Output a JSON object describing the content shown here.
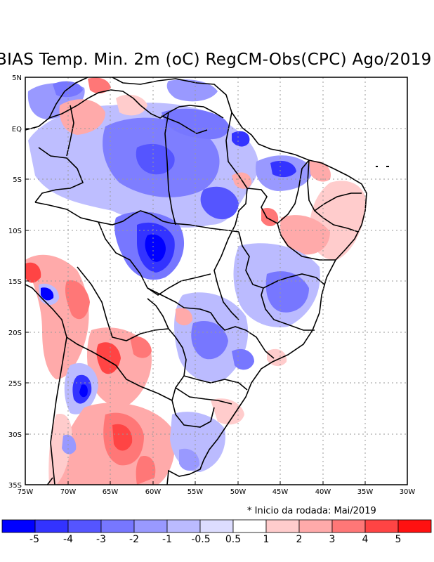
{
  "title": "BIAS Temp. Min. 2m (oC) RegCM-Obs(CPC) Ago/2019",
  "footnote": "* Inicio da rodada: Mai/2019",
  "lat_labels": [
    "5N",
    "EQ",
    "5S",
    "10S",
    "15S",
    "20S",
    "25S",
    "30S",
    "35S"
  ],
  "lon_labels": [
    "75W",
    "70W",
    "65W",
    "60W",
    "55W",
    "50W",
    "45W",
    "40W",
    "35W",
    "30W"
  ],
  "colorbar": {
    "labels": [
      "-5",
      "-4",
      "-3",
      "-2",
      "-1",
      "-0.5",
      "0.5",
      "1",
      "2",
      "3",
      "4",
      "5"
    ],
    "colors": [
      "#0000ff",
      "#3333ff",
      "#5555ff",
      "#7777ff",
      "#9999ff",
      "#bbbbff",
      "#ddddff",
      "#ffffff",
      "#ffcccc",
      "#ffaaaa",
      "#ff7777",
      "#ff4444",
      "#ff1111"
    ]
  },
  "map_data": {
    "type": "raster",
    "variable": "BIAS Temp. Min. 2m",
    "units": "oC",
    "lon_range": [
      -75,
      -30
    ],
    "lat_range": [
      -35,
      5
    ],
    "features": [
      {
        "name": "cold-amazon",
        "bias": -2
      },
      {
        "name": "cold-rondonia-mato-grosso",
        "bias": -4
      },
      {
        "name": "cold-northeast-maranhao",
        "bias": -3
      },
      {
        "name": "cold-bolivia-andes",
        "bias": -5
      },
      {
        "name": "cold-northwest-argentina",
        "bias": -5
      },
      {
        "name": "warm-andes-peru-chile",
        "bias": 4
      },
      {
        "name": "warm-paraguay-chaco",
        "bias": 4
      },
      {
        "name": "warm-argentina-pampas",
        "bias": 3
      },
      {
        "name": "warm-northeast-coast",
        "bias": 2
      },
      {
        "name": "warm-venezuela-colombia",
        "bias": 2
      }
    ]
  }
}
